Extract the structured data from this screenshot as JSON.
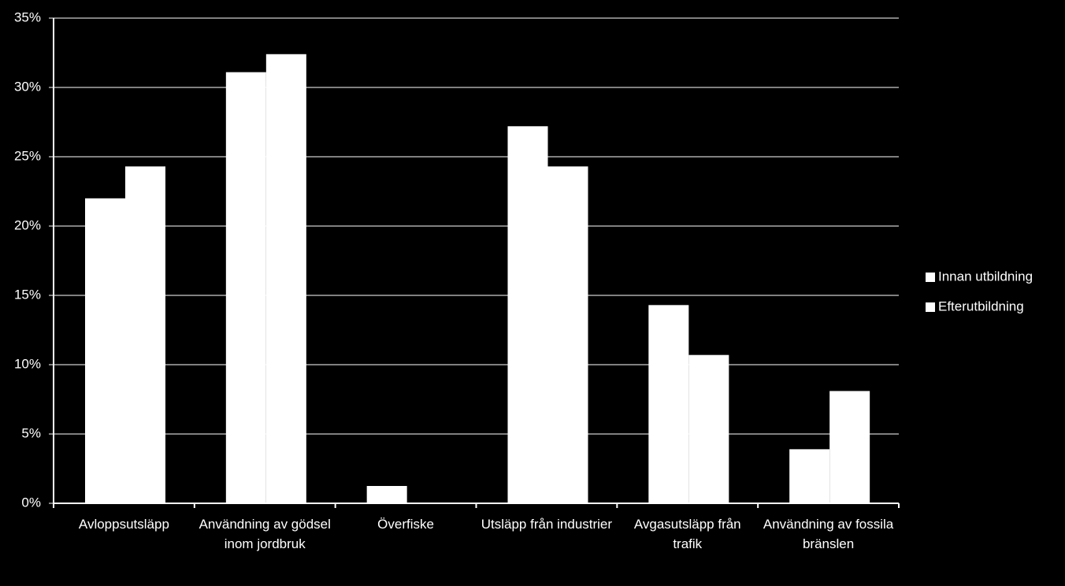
{
  "chart_data": {
    "type": "bar",
    "categories": [
      "Avloppsutsläpp",
      "Användning av gödsel inom jordbruk",
      "Överfiske",
      "Utsläpp från industrier",
      "Avgasutsläpp från trafik",
      "Användning av fossila bränslen"
    ],
    "series": [
      {
        "name": "Innan utbildning",
        "color": "#ffffff",
        "values": [
          22.0,
          31.1,
          1.25,
          27.2,
          14.3,
          3.9
        ]
      },
      {
        "name": "Efterutbildning",
        "color": "#ffffff",
        "values": [
          24.3,
          32.4,
          0,
          24.3,
          10.7,
          8.1
        ]
      }
    ],
    "ylim": [
      0,
      35
    ],
    "yticks": [
      {
        "value": 0,
        "label": "0%"
      },
      {
        "value": 5,
        "label": "5%"
      },
      {
        "value": 10,
        "label": "10%"
      },
      {
        "value": 15,
        "label": "15%"
      },
      {
        "value": 20,
        "label": "20%"
      },
      {
        "value": 25,
        "label": "25%"
      },
      {
        "value": 30,
        "label": "30%"
      },
      {
        "value": 35,
        "label": "35%"
      }
    ],
    "grid": true,
    "legend": "right"
  }
}
